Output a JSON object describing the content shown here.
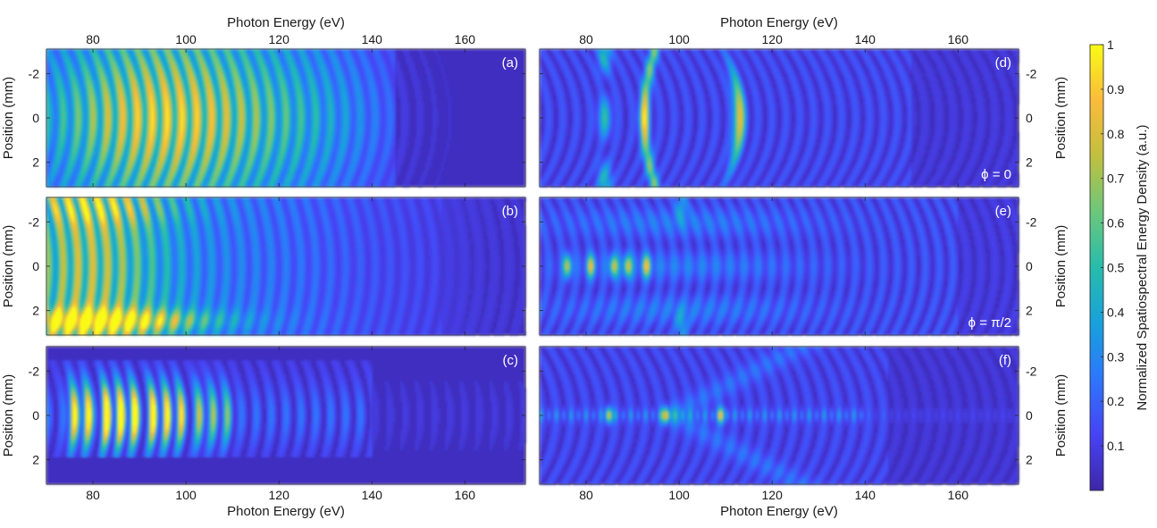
{
  "chart_data": [
    {
      "type": "heatmap",
      "panel": "(a)",
      "xlabel_top": "Photon Energy (eV)",
      "xlabel": "",
      "ylabel": "Position (mm)",
      "xlim": [
        70,
        173
      ],
      "ylim": [
        -3.1,
        3.1
      ],
      "x_ticks": [
        "80",
        "100",
        "120",
        "140",
        "160"
      ],
      "y_ticks": [
        "-2",
        "0",
        "2"
      ],
      "bright_band_ev": [
        72,
        122
      ],
      "peak_ev": 95,
      "fringe_period_ev": 3.2,
      "fade_ev": 145,
      "annotation": ""
    },
    {
      "type": "heatmap",
      "panel": "(b)",
      "xlabel": "",
      "ylabel": "Position (mm)",
      "xlim": [
        70,
        173
      ],
      "ylim": [
        -3.1,
        3.1
      ],
      "x_ticks": [],
      "y_ticks": [
        "-2",
        "0",
        "2"
      ],
      "bright_band_ev": [
        70,
        95
      ],
      "bottom_edge_bright_ev": [
        70,
        105
      ],
      "fringe_period_ev": 3.2,
      "fade_ev": 155,
      "annotation": ""
    },
    {
      "type": "heatmap",
      "panel": "(c)",
      "xlabel": "Photon Energy (eV)",
      "ylabel": "Position (mm)",
      "xlim": [
        70,
        173
      ],
      "ylim": [
        -3.1,
        3.1
      ],
      "x_ticks": [
        "80",
        "100",
        "120",
        "140",
        "160"
      ],
      "y_ticks": [
        "-2",
        "0",
        "2"
      ],
      "aperture_mm": [
        -2.5,
        1.9
      ],
      "peaks_ev": [
        76,
        79,
        83,
        86,
        89,
        93,
        96,
        99,
        103,
        106,
        109
      ],
      "fade_ev": 140,
      "annotation": ""
    },
    {
      "type": "heatmap",
      "panel": "(d)",
      "xlabel_top": "Photon Energy (eV)",
      "ylabel": "Position (mm)",
      "xlim": [
        70,
        173
      ],
      "ylim": [
        -3.1,
        3.1
      ],
      "x_ticks": [
        "80",
        "100",
        "120",
        "140",
        "160"
      ],
      "y_ticks": [
        "-2",
        "0",
        "2"
      ],
      "hot_spots_ev": [
        92.5,
        113
      ],
      "fade_ev": 150,
      "annotation": "ϕ = 0"
    },
    {
      "type": "heatmap",
      "panel": "(e)",
      "xlabel": "",
      "ylabel": "Position (mm)",
      "xlim": [
        70,
        173
      ],
      "ylim": [
        -3.1,
        3.1
      ],
      "x_ticks": [],
      "y_ticks": [
        "-2",
        "0",
        "2"
      ],
      "hot_spots_ev": [
        76,
        81,
        86,
        89,
        93
      ],
      "fade_ev": 160,
      "annotation": "ϕ = π/2"
    },
    {
      "type": "heatmap",
      "panel": "(f)",
      "xlabel": "Photon Energy (eV)",
      "ylabel": "Position (mm)",
      "xlim": [
        70,
        173
      ],
      "ylim": [
        -3.1,
        3.1
      ],
      "x_ticks": [
        "80",
        "100",
        "120",
        "140",
        "160"
      ],
      "y_ticks": [
        "-2",
        "0",
        "2"
      ],
      "hot_spots_ev": [
        85,
        97,
        109
      ],
      "fade_ev": 145,
      "annotation": ""
    }
  ],
  "colorbar": {
    "label": "Normalized Spatiospectral Energy Density (a.u.)",
    "ticks": [
      "0.1",
      "0.2",
      "0.3",
      "0.4",
      "0.5",
      "0.6",
      "0.7",
      "0.8",
      "0.9",
      "1"
    ],
    "range": [
      0,
      1
    ],
    "colormap": [
      "#3e26a8",
      "#4743f4",
      "#2d76fc",
      "#18a1dc",
      "#27bcab",
      "#6cc77c",
      "#c1c03f",
      "#fbbb3b",
      "#f9fb15"
    ]
  }
}
